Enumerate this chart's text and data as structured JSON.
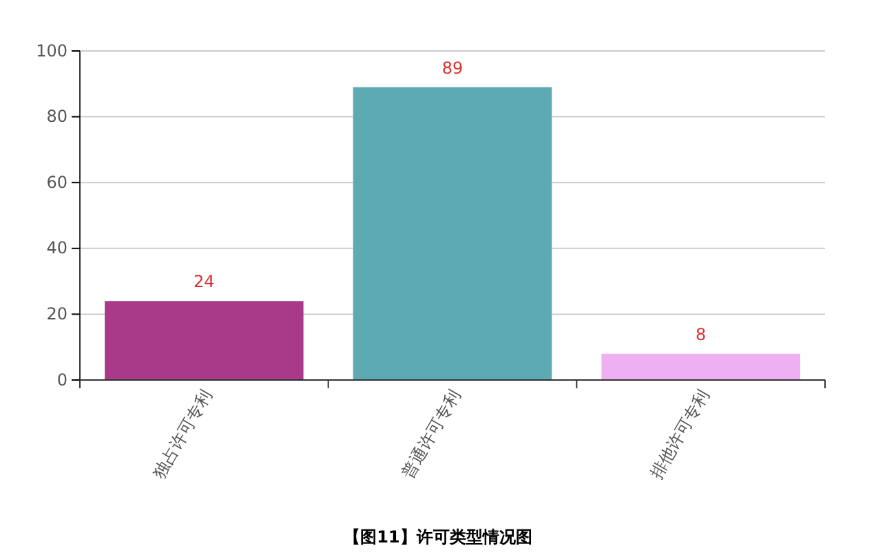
{
  "chart_data": {
    "type": "bar",
    "title": "【图11】许可类型情况图",
    "categories": [
      "独占许可专利",
      "普通许可专利",
      "排他许可专利"
    ],
    "values": [
      24,
      89,
      8
    ],
    "colors": [
      "#a93a8a",
      "#5eaab3",
      "#eeb0f0"
    ],
    "ylim": [
      0,
      100
    ],
    "yticks": [
      0,
      20,
      40,
      60,
      80,
      100
    ],
    "grid": "y",
    "data_labels": true
  }
}
